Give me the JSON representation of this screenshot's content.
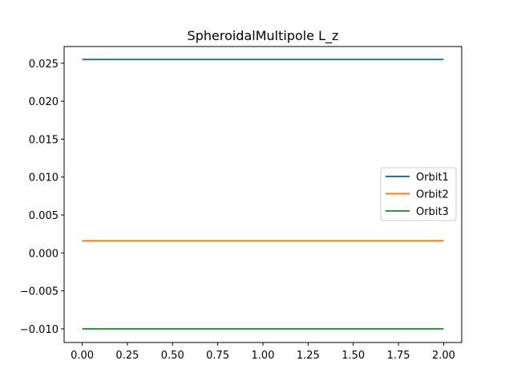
{
  "chart_data": {
    "type": "line",
    "title": "SpheroidalMultipole L_z",
    "xlabel": "",
    "ylabel": "",
    "xlim": [
      -0.1,
      2.1
    ],
    "ylim": [
      -0.0118,
      0.0272
    ],
    "x_ticks": [
      0.0,
      0.25,
      0.5,
      0.75,
      1.0,
      1.25,
      1.5,
      1.75,
      2.0
    ],
    "x_tick_labels": [
      "0.00",
      "0.25",
      "0.50",
      "0.75",
      "1.00",
      "1.25",
      "1.50",
      "1.75",
      "2.00"
    ],
    "y_ticks": [
      -0.01,
      -0.005,
      0.0,
      0.005,
      0.01,
      0.015,
      0.02,
      0.025
    ],
    "y_tick_labels": [
      "−0.010",
      "−0.005",
      "0.000",
      "0.005",
      "0.010",
      "0.015",
      "0.020",
      "0.025"
    ],
    "grid": false,
    "legend_position": "center-right",
    "x": [
      0.0,
      2.0
    ],
    "series": [
      {
        "name": "Orbit1",
        "color": "#1f77b4",
        "values": [
          0.0255,
          0.0255
        ]
      },
      {
        "name": "Orbit2",
        "color": "#ff7f0e",
        "values": [
          0.0016,
          0.0016
        ]
      },
      {
        "name": "Orbit3",
        "color": "#2ca02c",
        "values": [
          -0.01,
          -0.01
        ]
      }
    ]
  }
}
